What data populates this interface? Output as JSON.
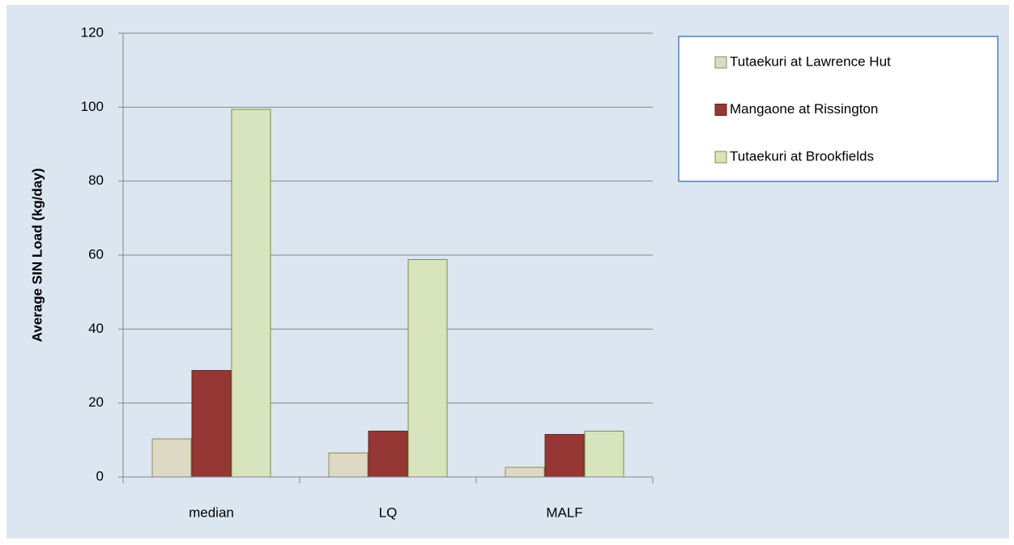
{
  "chart_data": {
    "type": "bar",
    "y_label": "Average SIN Load (kg/day)",
    "categories": [
      "median",
      "LQ",
      "MALF"
    ],
    "series": [
      {
        "name": "Tutaekuri at Lawrence Hut",
        "color": "#ddd9c4",
        "values": [
          10.3,
          6.5,
          2.6
        ]
      },
      {
        "name": "Mangaone at Rissington",
        "color": "#953735",
        "values": [
          28.8,
          12.4,
          11.5
        ]
      },
      {
        "name": "Tutaekuri at Brookfields",
        "color": "#d7e4bd",
        "values": [
          99.4,
          58.8,
          12.4
        ]
      }
    ],
    "ylim": [
      0,
      120
    ],
    "yticks": [
      0,
      20,
      40,
      60,
      80,
      100,
      120
    ],
    "grid": true,
    "legend": "right"
  }
}
